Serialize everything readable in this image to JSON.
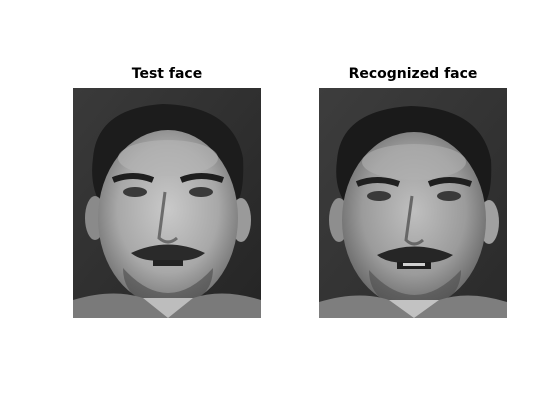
{
  "figure": {
    "panels": [
      {
        "title": "Test face",
        "image_icon": "grayscale-face-photo-icon"
      },
      {
        "title": "Recognized face",
        "image_icon": "grayscale-face-photo-icon"
      }
    ]
  }
}
